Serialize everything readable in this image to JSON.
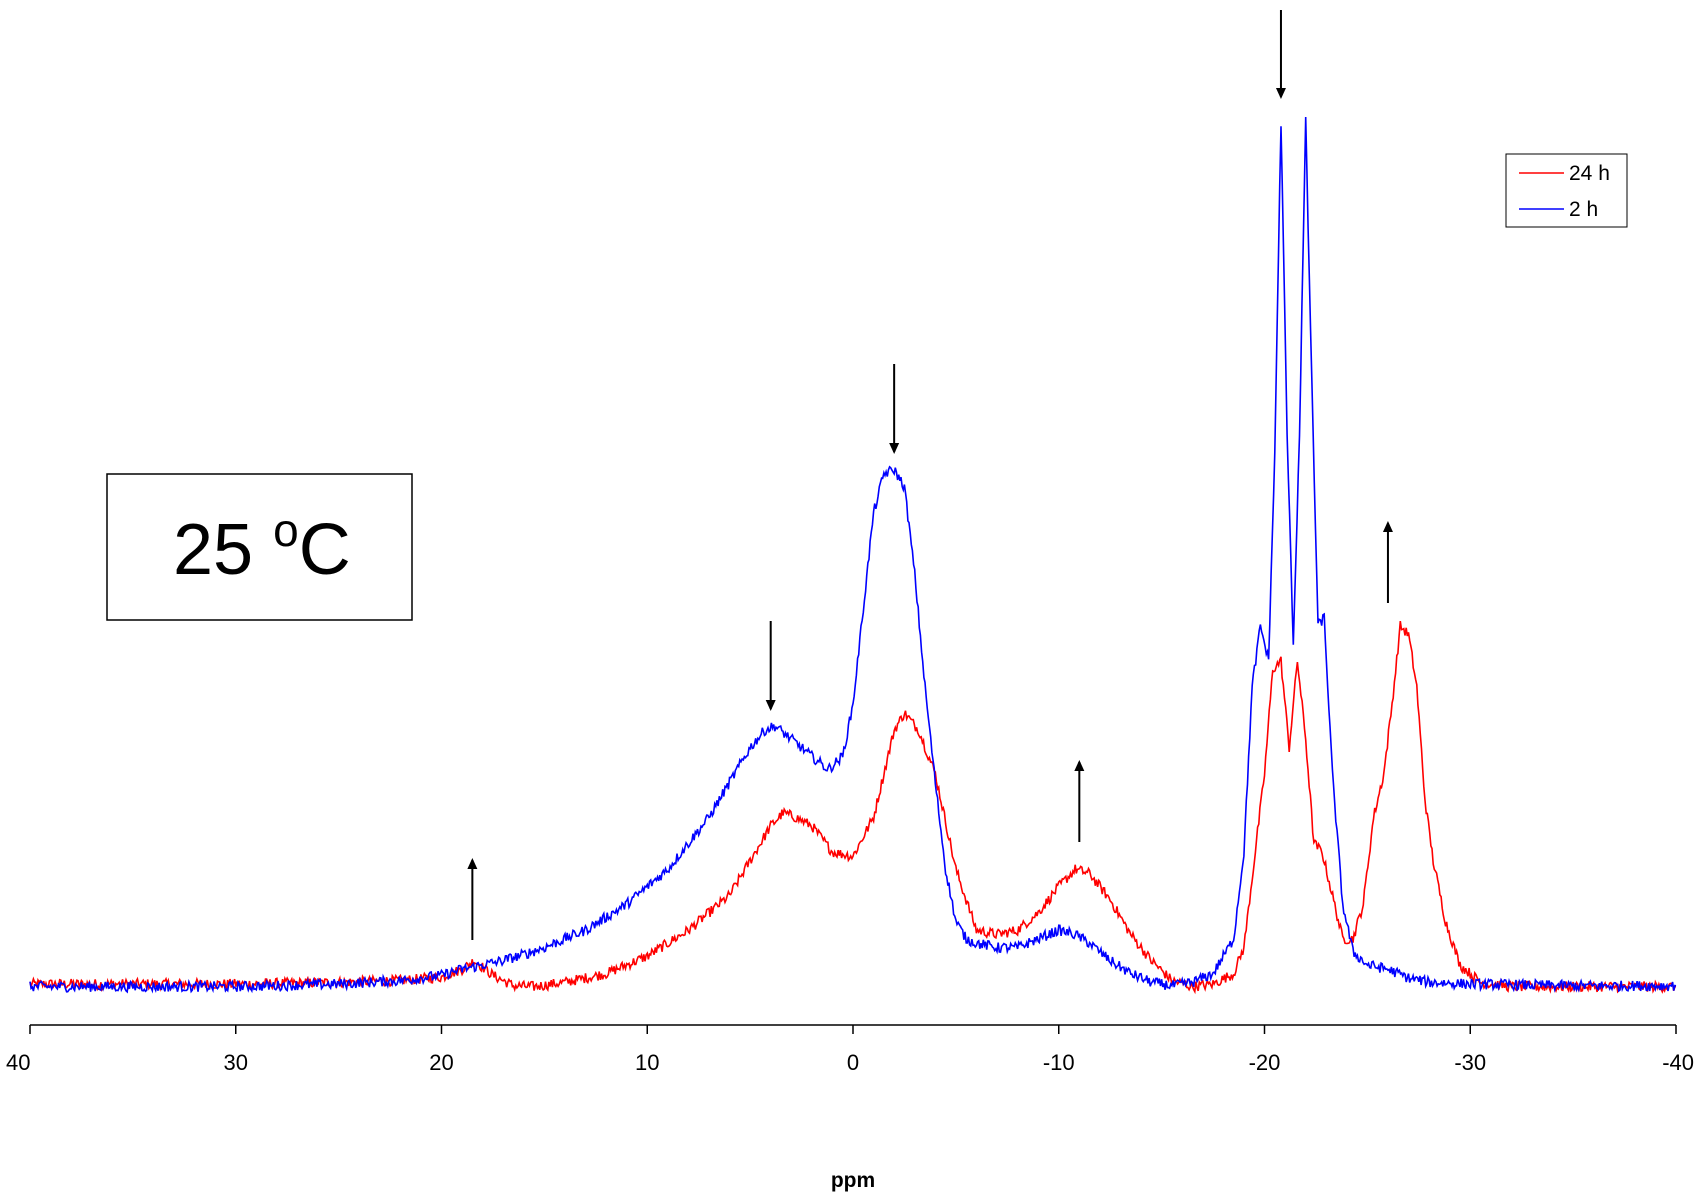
{
  "chart_data": {
    "type": "line",
    "xlabel": "ppm",
    "ylabel": "",
    "xlim": [
      40,
      -40
    ],
    "ylim": [
      0,
      1
    ],
    "x_ticks": [
      40,
      30,
      20,
      10,
      0,
      -10,
      -20,
      -30,
      -40
    ],
    "x_tick_labels": [
      "40",
      "30",
      "20",
      "10",
      "0",
      "-10",
      "-20",
      "-30",
      "-40"
    ],
    "grid": false,
    "legend_position": "top-right",
    "annotation": {
      "main": "25 ",
      "superscript": "o",
      "unit": "C"
    },
    "arrows": [
      {
        "x": -20.8,
        "direction": "down"
      },
      {
        "x": -2.0,
        "direction": "down"
      },
      {
        "x": 4.0,
        "direction": "down"
      },
      {
        "x": 18.5,
        "direction": "up"
      },
      {
        "x": -11.0,
        "direction": "up"
      },
      {
        "x": -26.0,
        "direction": "up"
      }
    ],
    "series": [
      {
        "name": "24 h",
        "color": "#ff0000",
        "x": [
          40,
          30,
          25,
          22,
          20,
          19,
          18.4,
          17.5,
          16.5,
          15.5,
          14,
          12,
          10,
          8,
          6,
          5,
          4,
          3.4,
          2.8,
          2,
          1,
          0,
          -1,
          -2,
          -2.5,
          -3.2,
          -4,
          -5,
          -6,
          -7,
          -8,
          -9,
          -10,
          -10.8,
          -11.5,
          -12.5,
          -13.5,
          -14.5,
          -15.5,
          -16.5,
          -17.5,
          -18.5,
          -19,
          -19.5,
          -20,
          -20.4,
          -20.8,
          -21.2,
          -21.6,
          -22,
          -22.4,
          -22.8,
          -23.2,
          -23.8,
          -24.3,
          -24.8,
          -25.3,
          -25.8,
          -26.2,
          -26.6,
          -27,
          -27.4,
          -27.8,
          -28.2,
          -28.8,
          -29.5,
          -30.5,
          -32,
          -35,
          -40
        ],
        "y": [
          0.008,
          0.008,
          0.01,
          0.012,
          0.016,
          0.025,
          0.035,
          0.018,
          0.006,
          0.005,
          0.01,
          0.02,
          0.04,
          0.07,
          0.11,
          0.15,
          0.19,
          0.205,
          0.2,
          0.19,
          0.16,
          0.155,
          0.2,
          0.3,
          0.32,
          0.3,
          0.25,
          0.14,
          0.07,
          0.065,
          0.07,
          0.09,
          0.12,
          0.14,
          0.135,
          0.105,
          0.065,
          0.035,
          0.012,
          0.005,
          0.008,
          0.02,
          0.05,
          0.15,
          0.25,
          0.37,
          0.38,
          0.28,
          0.38,
          0.29,
          0.17,
          0.16,
          0.12,
          0.06,
          0.06,
          0.1,
          0.2,
          0.25,
          0.33,
          0.42,
          0.41,
          0.35,
          0.22,
          0.15,
          0.08,
          0.03,
          0.01,
          0.005,
          0.005,
          0.005
        ]
      },
      {
        "name": "2 h",
        "color": "#0000ff",
        "x": [
          40,
          30,
          25,
          22,
          20,
          19,
          18,
          17,
          16,
          15,
          13,
          11,
          9,
          7,
          6,
          5,
          4.3,
          3.8,
          3,
          2,
          1.2,
          0.5,
          0,
          -0.5,
          -1,
          -1.5,
          -2,
          -2.5,
          -3,
          -3.5,
          -4,
          -4.5,
          -5,
          -5.5,
          -6,
          -7,
          -8,
          -9,
          -10,
          -10.8,
          -11.5,
          -12.5,
          -13.5,
          -14.5,
          -15.5,
          -16.5,
          -17.5,
          -18.5,
          -19,
          -19.4,
          -19.8,
          -20.2,
          -20.5,
          -20.8,
          -21.1,
          -21.4,
          -21.7,
          -22,
          -22.3,
          -22.6,
          -22.9,
          -23.3,
          -23.8,
          -24.3,
          -25,
          -26,
          -27,
          -28,
          -30,
          -35,
          -40
        ],
        "y": [
          0.005,
          0.005,
          0.008,
          0.012,
          0.018,
          0.025,
          0.03,
          0.035,
          0.042,
          0.05,
          0.07,
          0.1,
          0.14,
          0.2,
          0.24,
          0.28,
          0.3,
          0.305,
          0.29,
          0.27,
          0.255,
          0.27,
          0.33,
          0.44,
          0.55,
          0.595,
          0.6,
          0.58,
          0.48,
          0.35,
          0.24,
          0.14,
          0.08,
          0.06,
          0.055,
          0.05,
          0.05,
          0.06,
          0.07,
          0.065,
          0.055,
          0.035,
          0.02,
          0.01,
          0.006,
          0.01,
          0.02,
          0.06,
          0.16,
          0.35,
          0.42,
          0.38,
          0.62,
          1.0,
          0.64,
          0.4,
          0.64,
          1.0,
          0.7,
          0.42,
          0.43,
          0.25,
          0.1,
          0.045,
          0.03,
          0.025,
          0.015,
          0.01,
          0.008,
          0.006,
          0.006
        ]
      }
    ]
  }
}
